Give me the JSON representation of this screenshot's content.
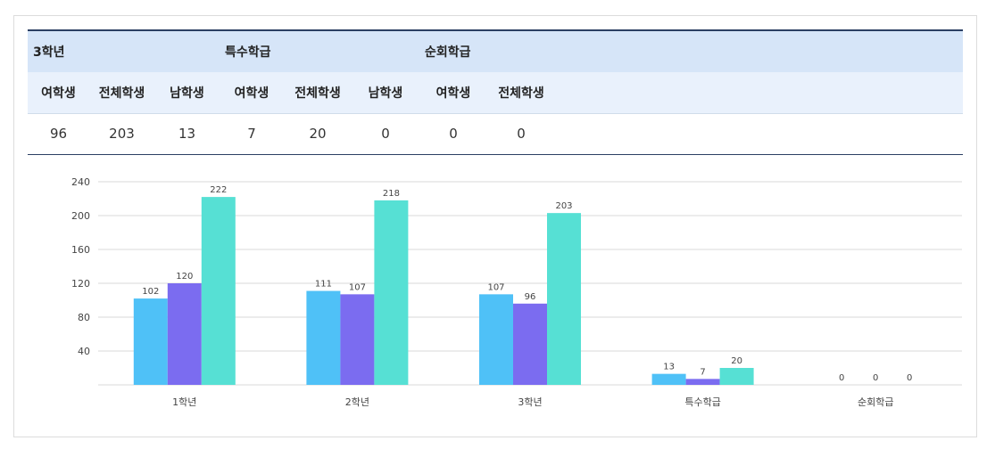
{
  "table": {
    "groups": [
      "3학년",
      "특수학급",
      "순회학급"
    ],
    "sub_headers": [
      "여학생",
      "전체학생",
      "남학생",
      "여학생",
      "전체학생",
      "남학생",
      "여학생",
      "전체학생"
    ],
    "values": [
      "96",
      "203",
      "13",
      "7",
      "20",
      "0",
      "0",
      "0"
    ]
  },
  "chart_data": {
    "type": "bar",
    "title": "",
    "xlabel": "",
    "ylabel": "",
    "categories": [
      "1학년",
      "2학년",
      "3학년",
      "특수학급",
      "순회학급"
    ],
    "series": [
      {
        "values": [
          102,
          111,
          107,
          13,
          0
        ],
        "color": "#4fc1f7"
      },
      {
        "values": [
          120,
          107,
          96,
          7,
          0
        ],
        "color": "#7b6cf0"
      },
      {
        "values": [
          222,
          218,
          203,
          20,
          0
        ],
        "color": "#56e0d4"
      }
    ],
    "yticks": [
      40,
      80,
      120,
      160,
      200,
      240
    ],
    "ylim": [
      0,
      240
    ],
    "grid": true,
    "legend": "none"
  }
}
